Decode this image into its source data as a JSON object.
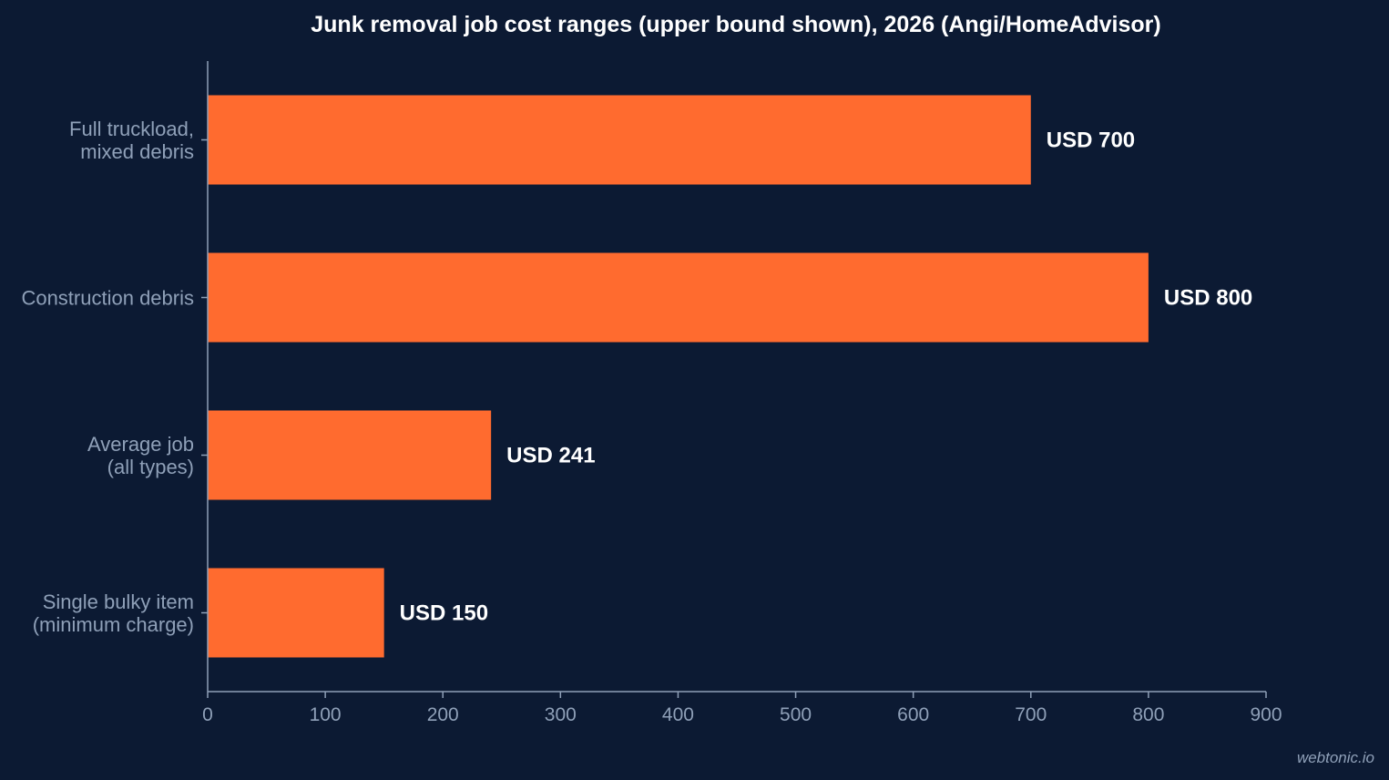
{
  "chart_data": {
    "type": "bar",
    "orientation": "horizontal",
    "title": "Junk removal job cost ranges (upper bound shown), 2026 (Angi/HomeAdvisor)",
    "categories": [
      [
        "Full truckload,",
        "mixed debris"
      ],
      [
        "Construction debris"
      ],
      [
        "Average job",
        "(all types)"
      ],
      [
        "Single bulky item",
        "(minimum charge)"
      ]
    ],
    "values": [
      700,
      800,
      241,
      150
    ],
    "value_labels": [
      "USD 700",
      "USD 800",
      "USD 241",
      "USD 150"
    ],
    "xlim": [
      0,
      900
    ],
    "xticks": [
      0,
      100,
      200,
      300,
      400,
      500,
      600,
      700,
      800,
      900
    ],
    "xtick_labels": [
      "0",
      "100",
      "200",
      "300",
      "400",
      "500",
      "600",
      "700",
      "800",
      "900"
    ],
    "grid": false,
    "legend": "none",
    "colors": {
      "background": "#0c1a33",
      "bar": "#ff6b2f",
      "axis": "#8fa0b8",
      "text": "#ffffff",
      "muted": "#8fa0b8"
    }
  },
  "watermark": "webtonic.io"
}
